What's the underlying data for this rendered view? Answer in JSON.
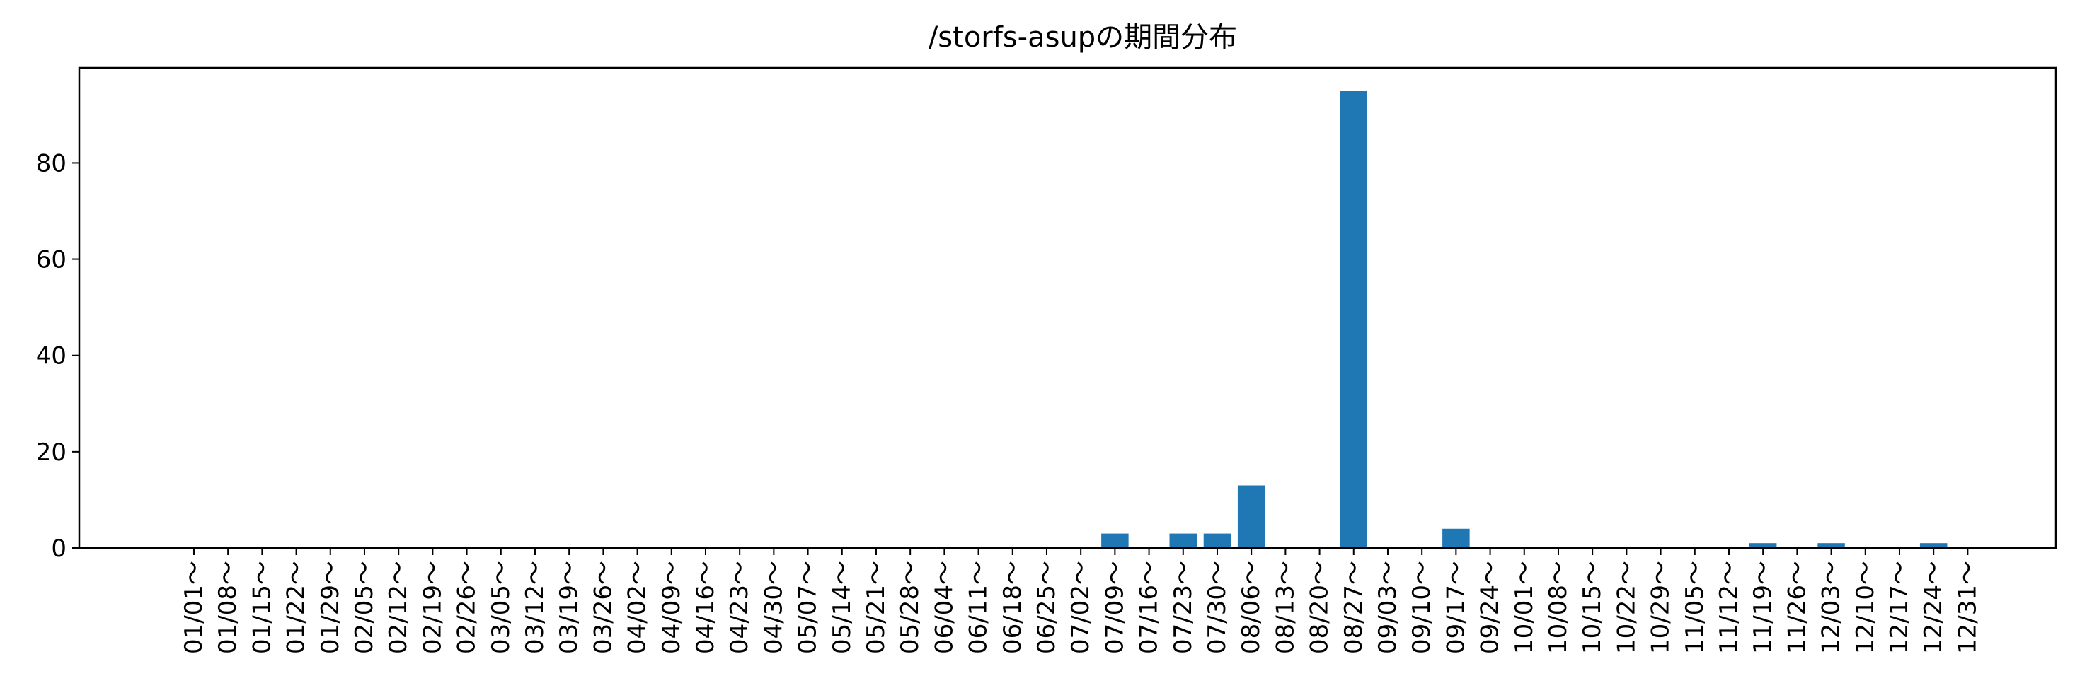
{
  "chart_data": {
    "type": "bar",
    "title": "/storfs-asupの期間分布",
    "xlabel": "",
    "ylabel": "",
    "categories": [
      "01/01～",
      "01/08～",
      "01/15～",
      "01/22～",
      "01/29～",
      "02/05～",
      "02/12～",
      "02/19～",
      "02/26～",
      "03/05～",
      "03/12～",
      "03/19～",
      "03/26～",
      "04/02～",
      "04/09～",
      "04/16～",
      "04/23～",
      "04/30～",
      "05/07～",
      "05/14～",
      "05/21～",
      "05/28～",
      "06/04～",
      "06/11～",
      "06/18～",
      "06/25～",
      "07/02～",
      "07/09～",
      "07/16～",
      "07/23～",
      "07/30～",
      "08/06～",
      "08/13～",
      "08/20～",
      "08/27～",
      "09/03～",
      "09/10～",
      "09/17～",
      "09/24～",
      "10/01～",
      "10/08～",
      "10/15～",
      "10/22～",
      "10/29～",
      "11/05～",
      "11/12～",
      "11/19～",
      "11/26～",
      "12/03～",
      "12/10～",
      "12/17～",
      "12/24～",
      "12/31～"
    ],
    "values": [
      0,
      0,
      0,
      0,
      0,
      0,
      0,
      0,
      0,
      0,
      0,
      0,
      0,
      0,
      0,
      0,
      0,
      0,
      0,
      0,
      0,
      0,
      0,
      0,
      0,
      0,
      0,
      3,
      0,
      3,
      3,
      13,
      0,
      0,
      95,
      0,
      0,
      4,
      0,
      0,
      0,
      0,
      0,
      0,
      0,
      0,
      1,
      0,
      1,
      0,
      0,
      1,
      0
    ],
    "ylim": [
      0,
      99.75
    ],
    "yticks": [
      0,
      20,
      40,
      60,
      80
    ],
    "grid": false,
    "bar_color": "#1f77b4"
  }
}
